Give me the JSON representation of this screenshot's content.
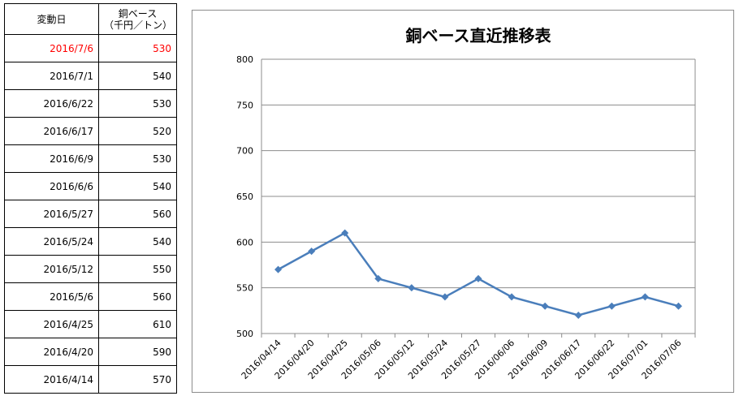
{
  "table": {
    "header_date": "変動日",
    "header_price_line1": "銅ベース",
    "header_price_line2": "（千円／トン）",
    "rows": [
      {
        "date": "2016/7/6",
        "price": "530"
      },
      {
        "date": "2016/7/1",
        "price": "540"
      },
      {
        "date": "2016/6/22",
        "price": "530"
      },
      {
        "date": "2016/6/17",
        "price": "520"
      },
      {
        "date": "2016/6/9",
        "price": "530"
      },
      {
        "date": "2016/6/6",
        "price": "540"
      },
      {
        "date": "2016/5/27",
        "price": "560"
      },
      {
        "date": "2016/5/24",
        "price": "540"
      },
      {
        "date": "2016/5/12",
        "price": "550"
      },
      {
        "date": "2016/5/6",
        "price": "560"
      },
      {
        "date": "2016/4/25",
        "price": "610"
      },
      {
        "date": "2016/4/20",
        "price": "590"
      },
      {
        "date": "2016/4/14",
        "price": "570"
      }
    ],
    "highlight_color": "#ff0000"
  },
  "chart_data": {
    "type": "line",
    "title": "銅ベース直近推移表",
    "xlabel": "",
    "ylabel": "",
    "categories": [
      "2016/04/14",
      "2016/04/20",
      "2016/04/25",
      "2016/05/06",
      "2016/05/12",
      "2016/05/24",
      "2016/05/27",
      "2016/06/06",
      "2016/06/09",
      "2016/06/17",
      "2016/06/22",
      "2016/07/01",
      "2016/07/06"
    ],
    "series": [
      {
        "values": [
          570,
          590,
          610,
          560,
          550,
          540,
          560,
          540,
          530,
          520,
          530,
          540,
          530
        ],
        "color": "#4a7ebb",
        "marker": "diamond"
      }
    ],
    "ylim": [
      500,
      800
    ],
    "yticks": [
      500,
      550,
      600,
      650,
      700,
      750,
      800
    ],
    "grid": true,
    "legend": "none"
  }
}
